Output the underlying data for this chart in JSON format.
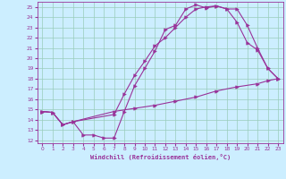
{
  "xlabel": "Windchill (Refroidissement éolien,°C)",
  "bg_color": "#cceeff",
  "line_color": "#993399",
  "grid_color": "#99ccbb",
  "xlim": [
    -0.5,
    23.5
  ],
  "ylim": [
    11.7,
    25.5
  ],
  "xticks": [
    0,
    1,
    2,
    3,
    4,
    5,
    6,
    7,
    8,
    9,
    10,
    11,
    12,
    13,
    14,
    15,
    16,
    17,
    18,
    19,
    20,
    21,
    22,
    23
  ],
  "yticks": [
    12,
    13,
    14,
    15,
    16,
    17,
    18,
    19,
    20,
    21,
    22,
    23,
    24,
    25
  ],
  "line1_x": [
    0,
    1,
    2,
    3,
    4,
    5,
    6,
    7,
    8,
    9,
    10,
    11,
    12,
    13,
    14,
    15,
    16,
    17,
    18,
    19,
    20,
    21,
    22,
    23
  ],
  "line1_y": [
    14.8,
    14.7,
    13.5,
    13.8,
    12.5,
    12.5,
    12.2,
    12.2,
    14.8,
    17.3,
    19.0,
    20.7,
    22.8,
    23.2,
    24.8,
    25.2,
    24.9,
    25.1,
    24.8,
    24.8,
    23.2,
    21.0,
    19.0,
    18.0
  ],
  "line2_x": [
    0,
    1,
    2,
    3,
    7,
    8,
    9,
    10,
    11,
    12,
    13,
    14,
    15,
    16,
    17,
    18,
    19,
    20,
    21,
    22,
    23
  ],
  "line2_y": [
    14.8,
    14.7,
    13.5,
    13.8,
    14.5,
    16.5,
    18.3,
    19.7,
    21.2,
    22.0,
    23.0,
    24.0,
    24.8,
    25.0,
    25.1,
    24.8,
    23.5,
    21.5,
    20.8,
    19.0,
    18.0
  ],
  "line3_x": [
    0,
    1,
    2,
    3,
    7,
    9,
    11,
    13,
    15,
    17,
    19,
    21,
    22,
    23
  ],
  "line3_y": [
    14.8,
    14.7,
    13.5,
    13.8,
    14.8,
    15.1,
    15.4,
    15.8,
    16.2,
    16.8,
    17.2,
    17.5,
    17.8,
    18.0
  ]
}
